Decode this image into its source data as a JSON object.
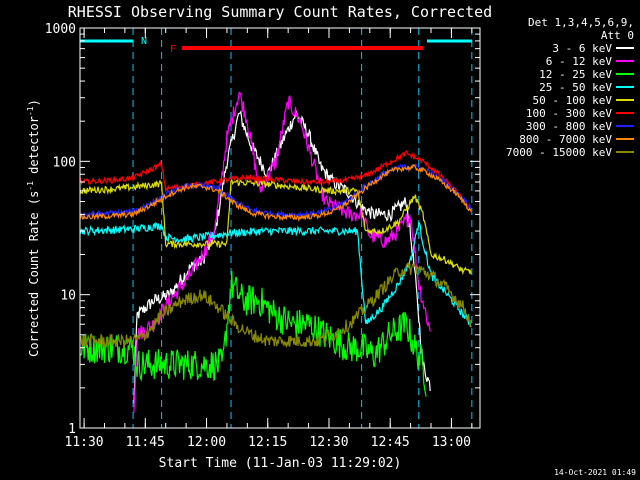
{
  "chart_data": {
    "type": "line",
    "title": "RHESSI Observing Summary Count Rates, Corrected",
    "xlabel": "Start Time (11-Jan-03 11:29:02)",
    "ylabel_pre": "Corrected Count Rate (s",
    "ylabel_sup1": "-1",
    "ylabel_mid": " detector",
    "ylabel_sup2": "-1",
    "ylabel_post": ")",
    "yscale": "log",
    "ylim": [
      1,
      1000
    ],
    "xlim_minutes": [
      0,
      98
    ],
    "x_ticks": [
      {
        "label": "11:30",
        "t": 1
      },
      {
        "label": "11:45",
        "t": 16
      },
      {
        "label": "12:00",
        "t": 31
      },
      {
        "label": "12:15",
        "t": 46
      },
      {
        "label": "12:30",
        "t": 61
      },
      {
        "label": "12:45",
        "t": 76
      },
      {
        "label": "13:00",
        "t": 91
      }
    ],
    "y_ticks": [
      {
        "label": "1000",
        "v": 1000
      },
      {
        "label": "100",
        "v": 100
      },
      {
        "label": "10",
        "v": 10
      },
      {
        "label": "1",
        "v": 1
      }
    ],
    "legend": {
      "placement": "right",
      "header": [
        "Det 1,3,4,5,6,9,",
        "Att 0"
      ],
      "entries": [
        {
          "label": "3 - 6 keV",
          "color": "#ffffff"
        },
        {
          "label": "6 - 12 keV",
          "color": "#ff00ff"
        },
        {
          "label": "12 - 25 keV",
          "color": "#00ff00"
        },
        {
          "label": "25 - 50 keV",
          "color": "#00ffff"
        },
        {
          "label": "50 - 100 keV",
          "color": "#dddd00"
        },
        {
          "label": "100 - 300 keV",
          "color": "#ff0000"
        },
        {
          "label": "300 - 800 keV",
          "color": "#2020ff"
        },
        {
          "label": "800 - 7000 keV",
          "color": "#ff8800"
        },
        {
          "label": "7000 - 15000 keV",
          "color": "#888800"
        }
      ]
    },
    "annotations": {
      "night_label": "N",
      "flare_label": "F",
      "night_intervals": [
        [
          0,
          13
        ],
        [
          85,
          96
        ]
      ],
      "flare_interval": [
        25,
        84
      ],
      "saa_lines": [
        0,
        13,
        20,
        37,
        69,
        83,
        96
      ],
      "timestamp": "14-Oct-2021 01:49"
    },
    "series": [
      {
        "name": "3 - 6 keV",
        "color": "#ffffff",
        "noise": 0.05,
        "points": [
          [
            13,
            1
          ],
          [
            14,
            7
          ],
          [
            18,
            9
          ],
          [
            22,
            10
          ],
          [
            27,
            16
          ],
          [
            30,
            18
          ],
          [
            33,
            28
          ],
          [
            36,
            100
          ],
          [
            39,
            230
          ],
          [
            42,
            130
          ],
          [
            46,
            80
          ],
          [
            50,
            150
          ],
          [
            53,
            230
          ],
          [
            56,
            160
          ],
          [
            59,
            90
          ],
          [
            62,
            70
          ],
          [
            66,
            58
          ],
          [
            69,
            45
          ],
          [
            72,
            40
          ],
          [
            76,
            40
          ],
          [
            80,
            50
          ],
          [
            82,
            15
          ],
          [
            84,
            3
          ],
          [
            86,
            2
          ]
        ]
      },
      {
        "name": "6 - 12 keV",
        "color": "#ff00ff",
        "noise": 0.06,
        "points": [
          [
            13,
            1
          ],
          [
            14,
            5
          ],
          [
            18,
            6
          ],
          [
            22,
            9
          ],
          [
            27,
            14
          ],
          [
            30,
            20
          ],
          [
            33,
            30
          ],
          [
            36,
            150
          ],
          [
            39,
            330
          ],
          [
            41,
            200
          ],
          [
            44,
            60
          ],
          [
            48,
            100
          ],
          [
            51,
            280
          ],
          [
            54,
            200
          ],
          [
            57,
            100
          ],
          [
            60,
            50
          ],
          [
            63,
            45
          ],
          [
            66,
            40
          ],
          [
            69,
            40
          ],
          [
            71,
            28
          ],
          [
            75,
            25
          ],
          [
            78,
            30
          ],
          [
            81,
            40
          ],
          [
            83,
            12
          ],
          [
            86,
            5
          ]
        ]
      },
      {
        "name": "12 - 25 keV",
        "color": "#00ff00",
        "noise": 0.12,
        "points": [
          [
            0,
            4
          ],
          [
            8,
            4
          ],
          [
            13,
            4
          ],
          [
            14,
            3
          ],
          [
            20,
            3
          ],
          [
            25,
            3
          ],
          [
            30,
            3
          ],
          [
            35,
            3
          ],
          [
            37,
            12
          ],
          [
            40,
            9
          ],
          [
            44,
            9
          ],
          [
            48,
            7
          ],
          [
            52,
            6
          ],
          [
            56,
            6
          ],
          [
            60,
            5
          ],
          [
            66,
            4
          ],
          [
            69,
            4
          ],
          [
            72,
            3.5
          ],
          [
            76,
            5
          ],
          [
            80,
            6
          ],
          [
            82,
            4
          ],
          [
            84,
            3
          ],
          [
            85,
            2
          ]
        ]
      },
      {
        "name": "25 - 50 keV",
        "color": "#00ffff",
        "noise": 0.03,
        "points": [
          [
            0,
            30
          ],
          [
            13,
            31
          ],
          [
            20,
            33
          ],
          [
            21,
            27
          ],
          [
            25,
            26
          ],
          [
            30,
            27
          ],
          [
            37,
            29
          ],
          [
            45,
            30
          ],
          [
            55,
            30
          ],
          [
            62,
            30
          ],
          [
            68,
            30
          ],
          [
            70,
            6
          ],
          [
            74,
            8
          ],
          [
            78,
            12
          ],
          [
            81,
            18
          ],
          [
            83,
            35
          ],
          [
            84,
            25
          ],
          [
            86,
            14
          ],
          [
            90,
            10
          ],
          [
            94,
            7
          ],
          [
            96,
            6
          ]
        ]
      },
      {
        "name": "50 - 100 keV",
        "color": "#dddd00",
        "noise": 0.025,
        "points": [
          [
            0,
            60
          ],
          [
            8,
            62
          ],
          [
            13,
            64
          ],
          [
            20,
            68
          ],
          [
            21,
            24
          ],
          [
            30,
            24
          ],
          [
            36,
            24
          ],
          [
            37,
            70
          ],
          [
            45,
            68
          ],
          [
            55,
            63
          ],
          [
            62,
            60
          ],
          [
            68,
            60
          ],
          [
            70,
            30
          ],
          [
            74,
            30
          ],
          [
            78,
            35
          ],
          [
            82,
            55
          ],
          [
            84,
            40
          ],
          [
            86,
            20
          ],
          [
            90,
            18
          ],
          [
            94,
            15
          ],
          [
            96,
            15
          ]
        ]
      },
      {
        "name": "100 - 300 keV",
        "color": "#ff0000",
        "noise": 0.02,
        "points": [
          [
            0,
            70
          ],
          [
            8,
            72
          ],
          [
            13,
            75
          ],
          [
            20,
            95
          ],
          [
            21,
            62
          ],
          [
            25,
            65
          ],
          [
            30,
            68
          ],
          [
            35,
            72
          ],
          [
            40,
            75
          ],
          [
            45,
            74
          ],
          [
            50,
            72
          ],
          [
            55,
            70
          ],
          [
            60,
            70
          ],
          [
            65,
            72
          ],
          [
            70,
            78
          ],
          [
            75,
            95
          ],
          [
            80,
            115
          ],
          [
            84,
            100
          ],
          [
            88,
            80
          ],
          [
            92,
            60
          ],
          [
            96,
            42
          ]
        ]
      },
      {
        "name": "300 - 800 keV",
        "color": "#2020ff",
        "noise": 0.02,
        "points": [
          [
            0,
            40
          ],
          [
            8,
            41
          ],
          [
            13,
            42
          ],
          [
            18,
            50
          ],
          [
            22,
            58
          ],
          [
            26,
            65
          ],
          [
            30,
            66
          ],
          [
            34,
            62
          ],
          [
            38,
            50
          ],
          [
            42,
            43
          ],
          [
            46,
            41
          ],
          [
            50,
            40
          ],
          [
            54,
            40
          ],
          [
            58,
            41
          ],
          [
            62,
            44
          ],
          [
            66,
            52
          ],
          [
            70,
            65
          ],
          [
            74,
            80
          ],
          [
            78,
            90
          ],
          [
            82,
            92
          ],
          [
            85,
            85
          ],
          [
            88,
            75
          ],
          [
            92,
            60
          ],
          [
            96,
            45
          ]
        ]
      },
      {
        "name": "800 - 7000 keV",
        "color": "#ff8800",
        "noise": 0.02,
        "points": [
          [
            0,
            38
          ],
          [
            8,
            39
          ],
          [
            13,
            40
          ],
          [
            18,
            48
          ],
          [
            22,
            57
          ],
          [
            26,
            64
          ],
          [
            30,
            65
          ],
          [
            34,
            60
          ],
          [
            38,
            48
          ],
          [
            42,
            41
          ],
          [
            46,
            39
          ],
          [
            50,
            38
          ],
          [
            54,
            38
          ],
          [
            58,
            39
          ],
          [
            62,
            42
          ],
          [
            66,
            50
          ],
          [
            70,
            63
          ],
          [
            74,
            78
          ],
          [
            78,
            88
          ],
          [
            82,
            90
          ],
          [
            85,
            83
          ],
          [
            88,
            72
          ],
          [
            92,
            58
          ],
          [
            96,
            42
          ]
        ]
      },
      {
        "name": "7000 - 15000 keV",
        "color": "#888800",
        "noise": 0.05,
        "points": [
          [
            0,
            4.5
          ],
          [
            8,
            4.5
          ],
          [
            13,
            4.5
          ],
          [
            16,
            5
          ],
          [
            20,
            7
          ],
          [
            25,
            9
          ],
          [
            30,
            10
          ],
          [
            34,
            8
          ],
          [
            38,
            6
          ],
          [
            42,
            5
          ],
          [
            46,
            4.5
          ],
          [
            50,
            4.5
          ],
          [
            54,
            4.5
          ],
          [
            58,
            4.5
          ],
          [
            62,
            5
          ],
          [
            66,
            6
          ],
          [
            70,
            8
          ],
          [
            74,
            11
          ],
          [
            78,
            15
          ],
          [
            82,
            16
          ],
          [
            86,
            14
          ],
          [
            90,
            11
          ],
          [
            94,
            8
          ],
          [
            96,
            6
          ]
        ]
      }
    ]
  }
}
